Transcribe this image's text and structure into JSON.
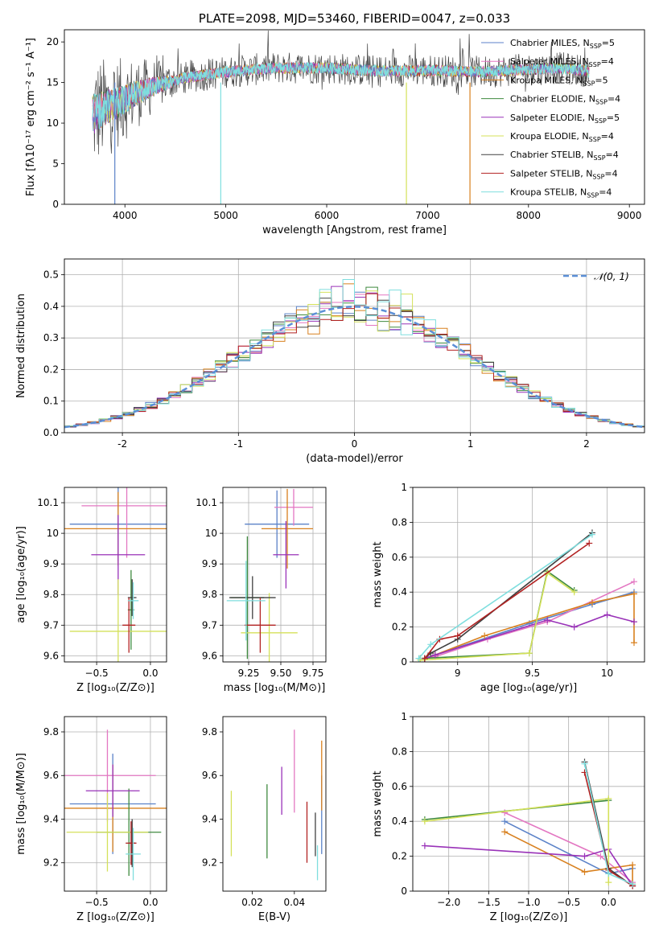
{
  "chart_data": [
    {
      "id": "spectrum",
      "type": "line",
      "title": "PLATE=2098, MJD=53460, FIBERID=0047, z=0.033",
      "xlabel": "wavelength [Angstrom, rest frame]",
      "ylabel": "Flux [fλ10⁻¹⁷ erg cm⁻² s⁻¹ A⁻¹]",
      "xlim": [
        3400,
        9150
      ],
      "ylim": [
        0,
        21.5
      ],
      "xticks": [
        4000,
        5000,
        6000,
        7000,
        8000,
        9000
      ],
      "yticks": [
        0,
        5,
        10,
        15,
        20
      ],
      "grid": false,
      "legend_position": "upper-right",
      "data_range": [
        3680,
        8600
      ],
      "continuum": [
        {
          "x": 3680,
          "y": 11.0
        },
        {
          "x": 3800,
          "y": 11.8
        },
        {
          "x": 3950,
          "y": 12.6
        },
        {
          "x": 4100,
          "y": 13.6
        },
        {
          "x": 4300,
          "y": 14.6
        },
        {
          "x": 4600,
          "y": 15.6
        },
        {
          "x": 5000,
          "y": 16.3
        },
        {
          "x": 5500,
          "y": 16.8
        },
        {
          "x": 6000,
          "y": 16.8
        },
        {
          "x": 6500,
          "y": 16.4
        },
        {
          "x": 7000,
          "y": 16.5
        },
        {
          "x": 7500,
          "y": 16.3
        },
        {
          "x": 8000,
          "y": 16.6
        },
        {
          "x": 8300,
          "y": 16.8
        },
        {
          "x": 8600,
          "y": 16.4
        }
      ],
      "drops": [
        {
          "x": 3900,
          "y": 0
        },
        {
          "x": 4950,
          "y": 0
        },
        {
          "x": 6790,
          "y": 0
        },
        {
          "x": 7420,
          "y": 0
        }
      ],
      "series": [
        {
          "name": "Chabrier MILES, N",
          "sub": "SSP",
          "suffix": "=5",
          "color": "#5b82c8"
        },
        {
          "name": "Salpeter MILES, N",
          "sub": "SSP",
          "suffix": "=4",
          "color": "#e377c2"
        },
        {
          "name": "Kroupa MILES, N",
          "sub": "SSP",
          "suffix": "=5",
          "color": "#d8801e"
        },
        {
          "name": "Chabrier ELODIE, N",
          "sub": "SSP",
          "suffix": "=4",
          "color": "#3f8a3f"
        },
        {
          "name": "Salpeter ELODIE, N",
          "sub": "SSP",
          "suffix": "=5",
          "color": "#9932b8"
        },
        {
          "name": "Kroupa ELODIE, N",
          "sub": "SSP",
          "suffix": "=4",
          "color": "#d4e15a"
        },
        {
          "name": "Chabrier STELIB, N",
          "sub": "SSP",
          "suffix": "=4",
          "color": "#404040"
        },
        {
          "name": "Salpeter STELIB, N",
          "sub": "SSP",
          "suffix": "=4",
          "color": "#b22222"
        },
        {
          "name": "Kroupa STELIB, N",
          "sub": "SSP",
          "suffix": "=4",
          "color": "#7fdede"
        }
      ]
    },
    {
      "id": "residuals",
      "type": "histogram",
      "xlabel": "(data-model)/error",
      "ylabel": "Normed distribution",
      "xlim": [
        -2.5,
        2.5
      ],
      "ylim": [
        0,
        0.55
      ],
      "xticks": [
        -2,
        -1,
        0,
        1,
        2
      ],
      "yticks": [
        0.0,
        0.1,
        0.2,
        0.3,
        0.4,
        0.5
      ],
      "grid": true,
      "bin_width": 0.1,
      "reference_curve": {
        "name": "𝒩(0, 1)",
        "mean": 0,
        "sigma": 1,
        "color": "#5b8fd6",
        "style": "dashed"
      },
      "legend_position": "upper-right",
      "colors": [
        "#5b82c8",
        "#e377c2",
        "#d8801e",
        "#3f8a3f",
        "#9932b8",
        "#d4e15a",
        "#404040",
        "#b22222",
        "#7fdede"
      ]
    },
    {
      "id": "age-vs-Z",
      "type": "errorbar",
      "xlabel": "Z [log₁₀(Z/Z⊙)]",
      "ylabel": "age  [log₁₀(age/yr)]",
      "xlim": [
        -0.8,
        0.15
      ],
      "ylim": [
        9.58,
        10.15
      ],
      "xticks": [
        -0.5,
        0.0
      ],
      "xticklabels": [
        "−0.5",
        "0.0"
      ],
      "yticks": [
        9.6,
        9.7,
        9.8,
        9.9,
        10.0,
        10.1
      ],
      "grid": true,
      "points": [
        {
          "color": "#5b82c8",
          "x": -0.3,
          "xerr": 0.45,
          "y": 10.03,
          "yerr": 0.12
        },
        {
          "color": "#e377c2",
          "x": -0.22,
          "xerr": 0.42,
          "y": 10.09,
          "yerr": 0.17
        },
        {
          "color": "#d8801e",
          "x": -0.3,
          "xerr": 0.5,
          "y": 10.015,
          "yerr": 0.12
        },
        {
          "color": "#3f8a3f",
          "x": -0.18,
          "xerr": 0.03,
          "y": 9.75,
          "yerr": 0.13
        },
        {
          "color": "#9932b8",
          "x": -0.3,
          "xerr": 0.25,
          "y": 9.93,
          "yerr": 0.13
        },
        {
          "color": "#d4e15a",
          "x": -0.3,
          "xerr": 0.45,
          "y": 9.68,
          "yerr": 0.17
        },
        {
          "color": "#404040",
          "x": -0.17,
          "xerr": 0.04,
          "y": 9.79,
          "yerr": 0.06
        },
        {
          "color": "#b22222",
          "x": -0.2,
          "xerr": 0.06,
          "y": 9.7,
          "yerr": 0.09
        },
        {
          "color": "#7fdede",
          "x": -0.16,
          "xerr": 0.05,
          "y": 9.78,
          "yerr": 0.06
        }
      ]
    },
    {
      "id": "age-vs-mass",
      "type": "errorbar",
      "xlabel": "mass [log₁₀(M/M⊙)]",
      "ylabel": "",
      "xlim": [
        9.05,
        9.85
      ],
      "ylim": [
        9.58,
        10.15
      ],
      "xticks": [
        9.25,
        9.5,
        9.75
      ],
      "xticklabels": [
        "9.25",
        "9.50",
        "9.75"
      ],
      "yticks": [
        9.6,
        9.7,
        9.8,
        9.9,
        10.0,
        10.1
      ],
      "grid": true,
      "points": [
        {
          "color": "#5b82c8",
          "x": 9.47,
          "xerr": 0.25,
          "y": 10.03,
          "yerr": 0.11
        },
        {
          "color": "#e377c2",
          "x": 9.6,
          "xerr": 0.15,
          "y": 10.085,
          "yerr": 0.06
        },
        {
          "color": "#d8801e",
          "x": 9.55,
          "xerr": 0.2,
          "y": 10.015,
          "yerr": 0.13
        },
        {
          "color": "#3f8a3f",
          "x": 9.24,
          "xerr": 0.13,
          "y": 9.79,
          "yerr": 0.2
        },
        {
          "color": "#9932b8",
          "x": 9.54,
          "xerr": 0.1,
          "y": 9.93,
          "yerr": 0.11
        },
        {
          "color": "#d4e15a",
          "x": 9.41,
          "xerr": 0.22,
          "y": 9.675,
          "yerr": 0.13
        },
        {
          "color": "#404040",
          "x": 9.28,
          "xerr": 0.18,
          "y": 9.79,
          "yerr": 0.07
        },
        {
          "color": "#b22222",
          "x": 9.34,
          "xerr": 0.12,
          "y": 9.7,
          "yerr": 0.09
        },
        {
          "color": "#7fdede",
          "x": 9.23,
          "xerr": 0.15,
          "y": 9.78,
          "yerr": 0.13
        }
      ]
    },
    {
      "id": "massweight-vs-age",
      "type": "line",
      "xlabel": "age  [log₁₀(age/yr)]",
      "ylabel": "mass weight",
      "xlim": [
        8.7,
        10.25
      ],
      "ylim": [
        0,
        1.0
      ],
      "xticks": [
        9.0,
        9.5,
        10.0
      ],
      "yticks": [
        0.0,
        0.2,
        0.4,
        0.6,
        0.8,
        1.0
      ],
      "grid": true,
      "series": [
        {
          "color": "#5b82c8",
          "points": [
            [
              8.78,
              0.02
            ],
            [
              8.85,
              0.04
            ],
            [
              9.48,
              0.22
            ],
            [
              9.9,
              0.33
            ],
            [
              10.18,
              0.4
            ]
          ]
        },
        {
          "color": "#e377c2",
          "points": [
            [
              8.78,
              0.02
            ],
            [
              8.85,
              0.03
            ],
            [
              9.2,
              0.13
            ],
            [
              9.6,
              0.23
            ],
            [
              10.18,
              0.46
            ]
          ]
        },
        {
          "color": "#d8801e",
          "points": [
            [
              8.78,
              0.02
            ],
            [
              8.85,
              0.04
            ],
            [
              9.18,
              0.15
            ],
            [
              9.9,
              0.34
            ],
            [
              10.18,
              0.39
            ],
            [
              10.18,
              0.11
            ]
          ]
        },
        {
          "color": "#3f8a3f",
          "points": [
            [
              8.75,
              0.02
            ],
            [
              9.48,
              0.05
            ],
            [
              9.6,
              0.52
            ],
            [
              9.78,
              0.41
            ]
          ]
        },
        {
          "color": "#9932b8",
          "points": [
            [
              8.78,
              0.02
            ],
            [
              8.85,
              0.04
            ],
            [
              9.6,
              0.24
            ],
            [
              9.78,
              0.2
            ],
            [
              10.0,
              0.27
            ],
            [
              10.18,
              0.23
            ]
          ]
        },
        {
          "color": "#d4e15a",
          "points": [
            [
              8.75,
              0.01
            ],
            [
              9.48,
              0.05
            ],
            [
              9.6,
              0.51
            ],
            [
              9.78,
              0.4
            ]
          ]
        },
        {
          "color": "#404040",
          "points": [
            [
              8.78,
              0.02
            ],
            [
              8.82,
              0.05
            ],
            [
              9.0,
              0.13
            ],
            [
              9.9,
              0.74
            ]
          ]
        },
        {
          "color": "#b22222",
          "points": [
            [
              8.78,
              0.02
            ],
            [
              8.88,
              0.13
            ],
            [
              9.0,
              0.15
            ],
            [
              9.88,
              0.68
            ]
          ]
        },
        {
          "color": "#7fdede",
          "points": [
            [
              8.74,
              0.02
            ],
            [
              8.82,
              0.1
            ],
            [
              9.9,
              0.73
            ]
          ]
        }
      ]
    },
    {
      "id": "mass-vs-Z",
      "type": "errorbar",
      "xlabel": "Z [log₁₀(Z/Z⊙)]",
      "ylabel": "mass [log₁₀(M/M⊙)]",
      "xlim": [
        -0.8,
        0.15
      ],
      "ylim": [
        9.07,
        9.87
      ],
      "xticks": [
        -0.5,
        0.0
      ],
      "xticklabels": [
        "−0.5",
        "0.0"
      ],
      "yticks": [
        9.2,
        9.4,
        9.6,
        9.8
      ],
      "grid": true,
      "points": [
        {
          "color": "#5b82c8",
          "x": -0.35,
          "xerr": 0.4,
          "y": 9.47,
          "yerr": 0.23
        },
        {
          "color": "#e377c2",
          "x": -0.4,
          "xerr": 0.45,
          "y": 9.6,
          "yerr": 0.21
        },
        {
          "color": "#d8801e",
          "x": -0.35,
          "xerr": 0.5,
          "y": 9.45,
          "yerr": 0.2
        },
        {
          "color": "#3f8a3f",
          "x": -0.2,
          "xerr": 0.3,
          "y": 9.34,
          "yerr": 0.2
        },
        {
          "color": "#9932b8",
          "x": -0.35,
          "xerr": 0.25,
          "y": 9.53,
          "yerr": 0.12
        },
        {
          "color": "#d4e15a",
          "x": -0.4,
          "xerr": 0.38,
          "y": 9.34,
          "yerr": 0.18
        },
        {
          "color": "#404040",
          "x": -0.17,
          "xerr": 0.03,
          "y": 9.29,
          "yerr": 0.11
        },
        {
          "color": "#b22222",
          "x": -0.18,
          "xerr": 0.05,
          "y": 9.29,
          "yerr": 0.1
        },
        {
          "color": "#7fdede",
          "x": -0.16,
          "xerr": 0.07,
          "y": 9.24,
          "yerr": 0.12
        }
      ]
    },
    {
      "id": "mass-vs-EBV",
      "type": "errorbar",
      "xlabel": "E(B-V)",
      "ylabel": "",
      "xlim": [
        0.006,
        0.055
      ],
      "ylim": [
        9.07,
        9.87
      ],
      "xticks": [
        0.02,
        0.04
      ],
      "xticklabels": [
        "0.02",
        "0.04"
      ],
      "yticks": [
        9.2,
        9.4,
        9.6,
        9.8
      ],
      "grid": false,
      "points": [
        {
          "color": "#5b82c8",
          "x": 0.053,
          "xerr": 0,
          "y": 9.42,
          "yerr": 0.18
        },
        {
          "color": "#e377c2",
          "x": 0.04,
          "xerr": 0,
          "y": 9.62,
          "yerr": 0.19
        },
        {
          "color": "#d8801e",
          "x": 0.053,
          "xerr": 0,
          "y": 9.6,
          "yerr": 0.16
        },
        {
          "color": "#3f8a3f",
          "x": 0.027,
          "xerr": 0,
          "y": 9.39,
          "yerr": 0.17
        },
        {
          "color": "#9932b8",
          "x": 0.034,
          "xerr": 0,
          "y": 9.53,
          "yerr": 0.11
        },
        {
          "color": "#d4e15a",
          "x": 0.01,
          "xerr": 0,
          "y": 9.38,
          "yerr": 0.15
        },
        {
          "color": "#404040",
          "x": 0.05,
          "xerr": 0,
          "y": 9.33,
          "yerr": 0.1
        },
        {
          "color": "#b22222",
          "x": 0.046,
          "xerr": 0,
          "y": 9.34,
          "yerr": 0.14
        },
        {
          "color": "#7fdede",
          "x": 0.051,
          "xerr": 0,
          "y": 9.2,
          "yerr": 0.08
        }
      ]
    },
    {
      "id": "massweight-vs-Z",
      "type": "line",
      "xlabel": "Z [log₁₀(Z/Z⊙)]",
      "ylabel": "mass weight",
      "xlim": [
        -2.45,
        0.45
      ],
      "ylim": [
        0,
        1.0
      ],
      "xticks": [
        -2.0,
        -1.5,
        -1.0,
        -0.5,
        0.0
      ],
      "xticklabels": [
        "−2.0",
        "−1.5",
        "−1.0",
        "−0.5",
        "0.0"
      ],
      "yticks": [
        0.0,
        0.2,
        0.4,
        0.6,
        0.8,
        1.0
      ],
      "grid": true,
      "series": [
        {
          "color": "#5b82c8",
          "points": [
            [
              -1.3,
              0.4
            ],
            [
              0.0,
              0.1
            ],
            [
              0.3,
              0.13
            ]
          ]
        },
        {
          "color": "#e377c2",
          "points": [
            [
              -1.3,
              0.45
            ],
            [
              -0.1,
              0.2
            ],
            [
              0.3,
              0.05
            ]
          ]
        },
        {
          "color": "#d8801e",
          "points": [
            [
              -1.3,
              0.34
            ],
            [
              -0.3,
              0.11
            ],
            [
              0.3,
              0.15
            ],
            [
              0.3,
              0.04
            ]
          ]
        },
        {
          "color": "#3f8a3f",
          "points": [
            [
              -2.3,
              0.41
            ],
            [
              0.0,
              0.52
            ]
          ]
        },
        {
          "color": "#9932b8",
          "points": [
            [
              -2.3,
              0.26
            ],
            [
              -0.3,
              0.2
            ],
            [
              0.0,
              0.24
            ],
            [
              0.3,
              0.03
            ]
          ]
        },
        {
          "color": "#d4e15a",
          "points": [
            [
              -2.3,
              0.4
            ],
            [
              0.0,
              0.53
            ],
            [
              0.0,
              0.05
            ]
          ]
        },
        {
          "color": "#404040",
          "points": [
            [
              -0.3,
              0.74
            ],
            [
              0.0,
              0.13
            ],
            [
              0.3,
              0.03
            ]
          ]
        },
        {
          "color": "#b22222",
          "points": [
            [
              -0.3,
              0.68
            ],
            [
              0.0,
              0.12
            ],
            [
              0.3,
              0.03
            ]
          ]
        },
        {
          "color": "#7fdede",
          "points": [
            [
              -0.3,
              0.73
            ],
            [
              0.0,
              0.1
            ],
            [
              0.3,
              0.04
            ]
          ]
        }
      ]
    }
  ]
}
